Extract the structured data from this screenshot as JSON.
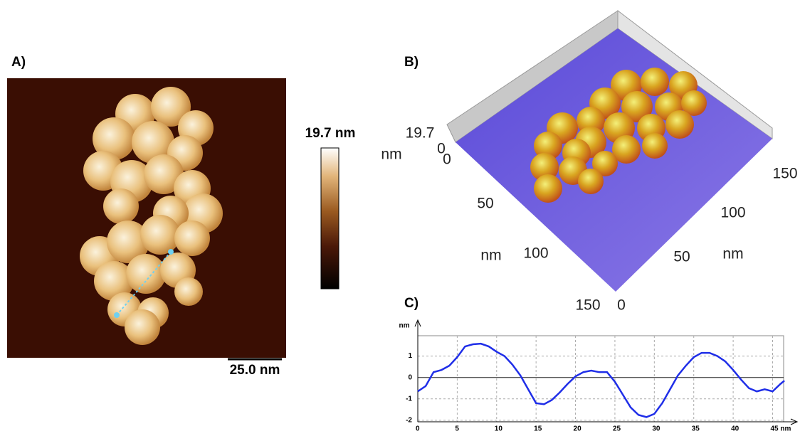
{
  "panels": {
    "a": {
      "label": "A)",
      "colorbar_max": "19.7 nm",
      "scale_bar": "25.0 nm"
    },
    "b": {
      "label": "B)",
      "z_max": "19.7",
      "z_unit": "nm",
      "z_zero": "0",
      "left_zero": "0",
      "left_ticks": [
        "50",
        "100",
        "150"
      ],
      "left_unit": "nm",
      "right_zero": "0",
      "right_ticks": [
        "50",
        "100",
        "150"
      ],
      "right_unit": "nm"
    },
    "c": {
      "label": "C)"
    }
  },
  "chart_data": {
    "type": "line",
    "y_label": "nm",
    "x": [
      0,
      1,
      2,
      3,
      4,
      5,
      6,
      7,
      8,
      9,
      10,
      11,
      12,
      13,
      14,
      15,
      16,
      17,
      18,
      19,
      20,
      21,
      22,
      23,
      24,
      25,
      26,
      27,
      28,
      29,
      30,
      31,
      32,
      33,
      34,
      35,
      36,
      37,
      38,
      39,
      40,
      41,
      42,
      43,
      44,
      45,
      46,
      46.5
    ],
    "series": [
      {
        "color": "#1f2ee8",
        "values": [
          -0.65,
          -0.4,
          0.25,
          0.35,
          0.55,
          0.95,
          1.45,
          1.55,
          1.58,
          1.45,
          1.2,
          1.0,
          0.6,
          0.1,
          -0.55,
          -1.2,
          -1.25,
          -1.05,
          -0.7,
          -0.3,
          0.05,
          0.25,
          0.32,
          0.25,
          0.25,
          -0.2,
          -0.8,
          -1.4,
          -1.75,
          -1.85,
          -1.7,
          -1.2,
          -0.55,
          0.1,
          0.55,
          0.95,
          1.15,
          1.15,
          1.0,
          0.75,
          0.35,
          -0.1,
          -0.5,
          -0.65,
          -0.55,
          -0.65,
          -0.3,
          -0.15
        ]
      }
    ],
    "xlim": [
      0,
      46.4
    ],
    "ylim": [
      -2.07,
      1.95
    ],
    "xticks": [
      0,
      5,
      10,
      15,
      20,
      25,
      30,
      35,
      40,
      {
        "value": 45,
        "label": "45 nm"
      }
    ],
    "yticks": [
      1,
      0,
      -1,
      -2
    ],
    "grid": true
  }
}
